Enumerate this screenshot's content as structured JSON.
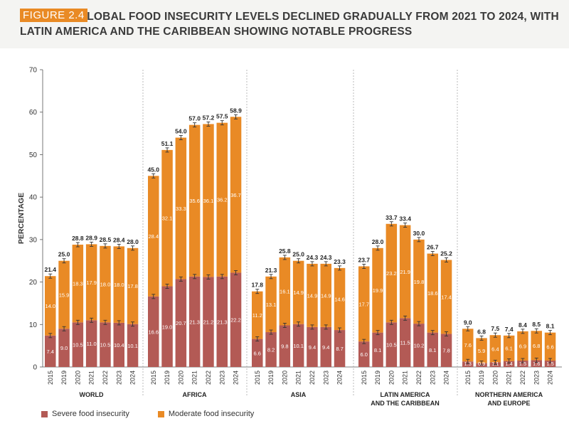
{
  "header": {
    "figure_label": "FIGURE 2.4",
    "title": "GLOBAL FOOD INSECURITY LEVELS DECLINED GRADUALLY FROM 2021 TO 2024, WITH LATIN AMERICA AND THE CARIBBEAN SHOWING NOTABLE PROGRESS"
  },
  "colors": {
    "severe": "#b35a55",
    "moderate": "#e98a25",
    "accent": "#e98a25"
  },
  "legend": {
    "severe_label": "Severe food insecurity",
    "moderate_label": "Moderate food insecurity"
  },
  "chart_data": {
    "type": "bar",
    "stacked": true,
    "ylabel": "PERCENTAGE",
    "ylim": [
      0,
      70
    ],
    "yticks": [
      0,
      10,
      20,
      30,
      40,
      50,
      60,
      70
    ],
    "groups": [
      {
        "name": "WORLD",
        "years": [
          "2015",
          "2019",
          "2020",
          "2021",
          "2022",
          "2023",
          "2024"
        ],
        "severe": [
          7.4,
          9.0,
          10.5,
          11.0,
          10.5,
          10.4,
          10.1
        ],
        "moderate": [
          14.0,
          15.9,
          18.3,
          17.9,
          18.0,
          18.0,
          17.8
        ],
        "total": [
          21.4,
          25.0,
          28.8,
          28.9,
          28.5,
          28.4,
          28.0
        ]
      },
      {
        "name": "AFRICA",
        "years": [
          "2015",
          "2019",
          "2020",
          "2021",
          "2022",
          "2023",
          "2024"
        ],
        "severe": [
          16.6,
          19.0,
          20.7,
          21.3,
          21.2,
          21.3,
          22.2
        ],
        "moderate": [
          28.4,
          32.1,
          33.3,
          35.6,
          36.1,
          36.2,
          36.7
        ],
        "total": [
          45.0,
          51.1,
          54.0,
          57.0,
          57.2,
          57.5,
          58.9
        ]
      },
      {
        "name": "ASIA",
        "years": [
          "2015",
          "2019",
          "2020",
          "2021",
          "2022",
          "2023",
          "2024"
        ],
        "severe": [
          6.6,
          8.2,
          9.8,
          10.1,
          9.4,
          9.4,
          8.7
        ],
        "moderate": [
          11.2,
          13.1,
          16.1,
          14.9,
          14.9,
          14.9,
          14.6
        ],
        "total": [
          17.8,
          21.3,
          25.8,
          25.0,
          24.3,
          24.3,
          23.3
        ]
      },
      {
        "name": "LATIN AMERICA AND THE CARIBBEAN",
        "name_lines": [
          "LATIN AMERICA",
          "AND THE CARIBBEAN"
        ],
        "years": [
          "2015",
          "2019",
          "2020",
          "2021",
          "2022",
          "2023",
          "2024"
        ],
        "severe": [
          6.0,
          8.1,
          10.5,
          11.5,
          10.2,
          8.1,
          7.8
        ],
        "moderate": [
          17.7,
          19.9,
          23.2,
          21.9,
          19.8,
          18.6,
          17.4
        ],
        "total": [
          23.7,
          28.0,
          33.7,
          33.4,
          30.0,
          26.7,
          25.2
        ]
      },
      {
        "name": "NORTHERN AMERICA AND EUROPE",
        "name_lines": [
          "NORTHERN AMERICA",
          "AND EUROPE"
        ],
        "years": [
          "2015",
          "2019",
          "2020",
          "2021",
          "2022",
          "2023",
          "2024"
        ],
        "severe": [
          1.3,
          0.9,
          1.1,
          1.4,
          1.5,
          1.6,
          1.5
        ],
        "moderate": [
          7.6,
          5.9,
          6.4,
          6.1,
          6.9,
          6.8,
          6.6
        ],
        "total": [
          9.0,
          6.8,
          7.5,
          7.4,
          8.4,
          8.5,
          8.1
        ]
      }
    ],
    "legend": [
      "Severe food insecurity",
      "Moderate food insecurity"
    ]
  }
}
